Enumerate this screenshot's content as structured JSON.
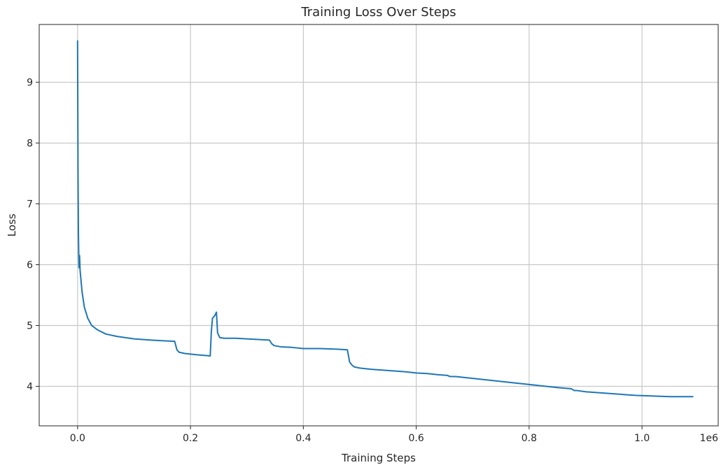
{
  "chart_data": {
    "type": "line",
    "title": "Training Loss Over Steps",
    "xlabel": "Training Steps",
    "ylabel": "Loss",
    "x_offset_label": "1e6",
    "xlim": [
      -68000,
      1135000
    ],
    "ylim": [
      3.35,
      9.95
    ],
    "x_ticks": [
      0.0,
      0.2,
      0.4,
      0.6,
      0.8,
      1.0
    ],
    "x_tick_labels": [
      "0.0",
      "0.2",
      "0.4",
      "0.6",
      "0.8",
      "1.0"
    ],
    "y_ticks": [
      4,
      5,
      6,
      7,
      8,
      9
    ],
    "y_tick_labels": [
      "4",
      "5",
      "6",
      "7",
      "8",
      "9"
    ],
    "grid": true,
    "series": [
      {
        "color": "#1f77b4",
        "x": [
          0,
          800,
          1500,
          2500,
          3500,
          4500,
          6000,
          8000,
          12000,
          18000,
          25000,
          35000,
          50000,
          70000,
          100000,
          130000,
          150000,
          172000,
          176000,
          180000,
          190000,
          210000,
          235000,
          237000,
          239000,
          242000,
          244000,
          246000,
          248000,
          252000,
          260000,
          280000,
          300000,
          320000,
          340000,
          344000,
          348000,
          360000,
          380000,
          400000,
          430000,
          460000,
          478000,
          480000,
          482000,
          486000,
          490000,
          500000,
          520000,
          550000,
          580000,
          600000,
          620000,
          640000,
          655000,
          660000,
          670000,
          700000,
          730000,
          760000,
          790000,
          820000,
          850000,
          875000,
          880000,
          885000,
          900000,
          930000,
          960000,
          990000,
          1020000,
          1050000,
          1070000,
          1090000
        ],
        "y": [
          9.68,
          7.5,
          6.5,
          5.95,
          6.15,
          5.9,
          5.75,
          5.55,
          5.3,
          5.12,
          5.0,
          4.93,
          4.86,
          4.82,
          4.78,
          4.76,
          4.75,
          4.74,
          4.6,
          4.56,
          4.54,
          4.52,
          4.5,
          4.9,
          5.12,
          5.15,
          5.18,
          5.22,
          4.88,
          4.8,
          4.79,
          4.79,
          4.78,
          4.77,
          4.76,
          4.7,
          4.67,
          4.65,
          4.64,
          4.62,
          4.62,
          4.61,
          4.6,
          4.5,
          4.4,
          4.35,
          4.32,
          4.3,
          4.28,
          4.26,
          4.24,
          4.22,
          4.21,
          4.19,
          4.18,
          4.16,
          4.16,
          4.13,
          4.1,
          4.07,
          4.04,
          4.01,
          3.98,
          3.96,
          3.93,
          3.93,
          3.91,
          3.89,
          3.87,
          3.85,
          3.84,
          3.83,
          3.83,
          3.83
        ]
      }
    ]
  }
}
